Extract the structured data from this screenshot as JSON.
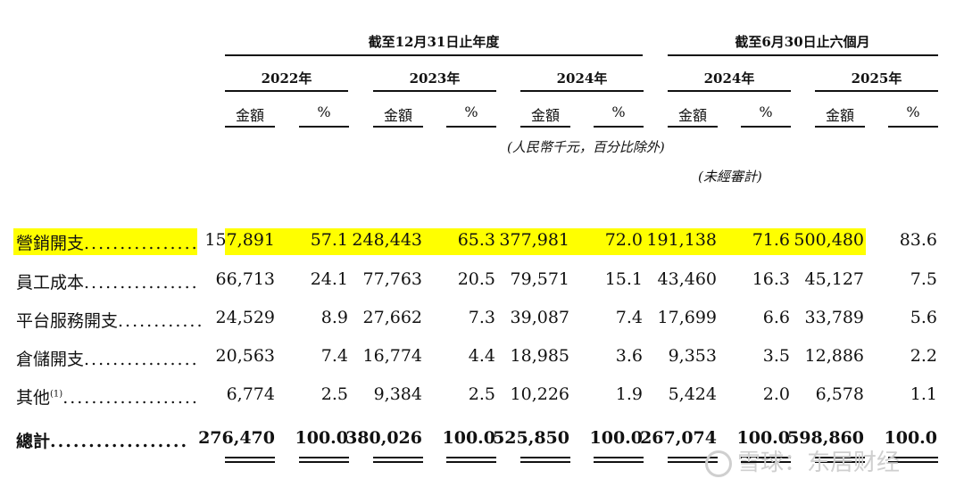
{
  "header": {
    "group_annual": "截至12月31日止年度",
    "group_interim": "截至6月30日止六個月",
    "years": [
      "2022年",
      "2023年",
      "2024年",
      "2024年",
      "2025年"
    ],
    "col_amount": "金額",
    "col_pct": "%",
    "unit_note": "(人民幣千元，百分比除外)",
    "unaudited_note": "(未經審計)"
  },
  "rows": [
    {
      "label": "營銷開支",
      "dots": "................",
      "highlight": true,
      "values": [
        "157,891",
        "57.1",
        "248,443",
        "65.3",
        "377,981",
        "72.0",
        "191,138",
        "71.6",
        "500,480",
        "83.6"
      ]
    },
    {
      "label": "員工成本",
      "dots": "................",
      "values": [
        "66,713",
        "24.1",
        "77,763",
        "20.5",
        "79,571",
        "15.1",
        "43,460",
        "16.3",
        "45,127",
        "7.5"
      ]
    },
    {
      "label": "平台服務開支",
      "dots": "............",
      "values": [
        "24,529",
        "8.9",
        "27,662",
        "7.3",
        "39,087",
        "7.4",
        "17,699",
        "6.6",
        "33,789",
        "5.6"
      ]
    },
    {
      "label": "倉儲開支",
      "dots": "................",
      "values": [
        "20,563",
        "7.4",
        "16,774",
        "4.4",
        "18,985",
        "3.6",
        "9,353",
        "3.5",
        "12,886",
        "2.2"
      ]
    },
    {
      "label": "其他",
      "footnote": "(1)",
      "dots": "...................",
      "values": [
        "6,774",
        "2.5",
        "9,384",
        "2.5",
        "10,226",
        "1.9",
        "5,424",
        "2.0",
        "6,578",
        "1.1"
      ]
    }
  ],
  "total": {
    "label": "總計",
    "dots": "..................",
    "values": [
      "276,470",
      "100.0",
      "380,026",
      "100.0",
      "525,850",
      "100.0",
      "267,074",
      "100.0",
      "598,860",
      "100.0"
    ]
  },
  "watermark": {
    "text": "雪球：东居财经"
  },
  "colors": {
    "highlight": "#ffff00",
    "text": "#111111"
  }
}
